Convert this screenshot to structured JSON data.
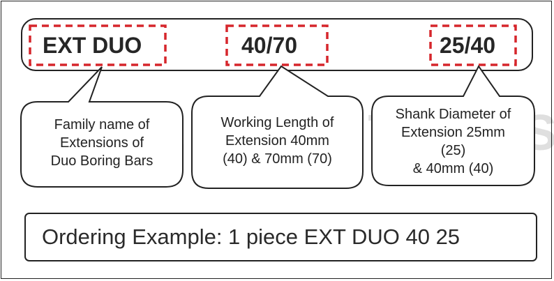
{
  "codes": {
    "family": "EXT DUO",
    "length": "40/70",
    "shank": "25/40"
  },
  "bubbles": {
    "family": [
      "Family name of",
      "Extensions of",
      "Duo Boring Bars"
    ],
    "length": [
      "Working Length of",
      "Extension 40mm",
      "(40) & 70mm (70)"
    ],
    "shank": [
      "Shank Diameter of",
      "Extension 25mm",
      "(25)",
      "& 40mm (40)"
    ]
  },
  "watermark": "RENUKA TOOLS",
  "ordering_example": "Ordering Example: 1 piece EXT DUO 40 25",
  "colors": {
    "dashed_box": "#d6262c",
    "outline": "#222222",
    "text": "#262626"
  }
}
